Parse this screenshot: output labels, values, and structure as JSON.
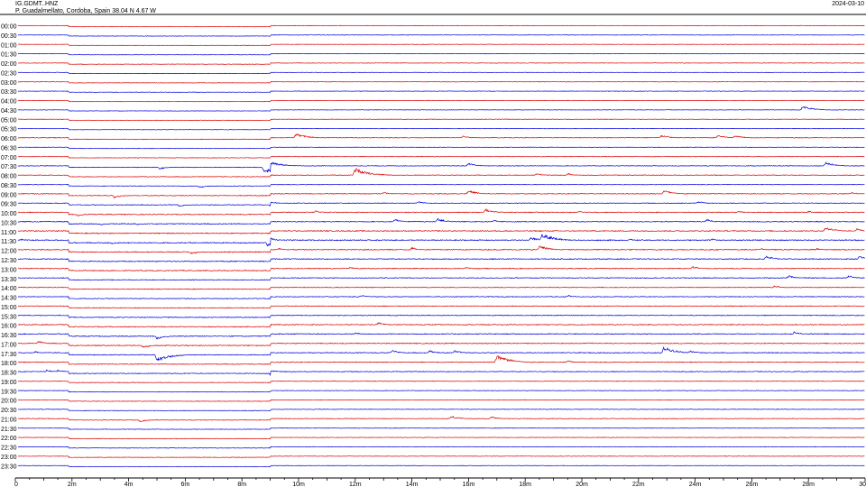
{
  "header": {
    "station": "IG.GDMT..HNZ",
    "location": "P. Guadalmellato, Cordoba, Spain  38.04 N 4.67 W",
    "date": "2024-03-10"
  },
  "chart_data": {
    "type": "line",
    "title": "IG.GDMT..HNZ",
    "subtitle": "P. Guadalmellato, Cordoba, Spain  38.04 N 4.67 W",
    "date": "2024-03-10",
    "xlabel": "",
    "ylabel": "",
    "xlim": [
      0,
      30
    ],
    "x_tick_values": [
      0,
      2,
      4,
      6,
      8,
      10,
      12,
      14,
      16,
      18,
      20,
      22,
      24,
      26,
      28,
      30
    ],
    "x_tick_labels": [
      "0",
      "2m",
      "4m",
      "6m",
      "8m",
      "10m",
      "12m",
      "14m",
      "16m",
      "18m",
      "20m",
      "22m",
      "24m",
      "26m",
      "28m",
      "30"
    ],
    "row_labels": [
      "00:00",
      "00:30",
      "01:00",
      "01:30",
      "02:00",
      "02:30",
      "03:00",
      "03:30",
      "04:00",
      "04:30",
      "05:00",
      "05:30",
      "06:00",
      "06:30",
      "07:00",
      "07:30",
      "08:00",
      "08:30",
      "09:00",
      "09:30",
      "10:00",
      "10:30",
      "11:00",
      "11:30",
      "12:00",
      "12:30",
      "13:00",
      "13:30",
      "14:00",
      "14:30",
      "15:00",
      "15:30",
      "16:00",
      "16:30",
      "17:00",
      "17:30",
      "18:00",
      "18:30",
      "19:00",
      "19:30",
      "20:00",
      "20:30",
      "21:00",
      "21:30",
      "22:00",
      "22:30",
      "23:00",
      "23:30"
    ],
    "trace_colors": [
      "#dd0000",
      "#0000dd"
    ],
    "background_noise": [
      0.8,
      0.8,
      0.8,
      0.8,
      0.9,
      0.8,
      0.8,
      0.8,
      0.8,
      0.8,
      0.8,
      0.8,
      1.2,
      0.9,
      0.9,
      1.1,
      1.2,
      1.1,
      1.4,
      1.3,
      1.6,
      1.7,
      1.8,
      2.0,
      1.8,
      1.8,
      1.6,
      1.5,
      1.3,
      1.4,
      1.4,
      1.5,
      1.6,
      1.7,
      1.6,
      1.6,
      1.5,
      1.4,
      1.0,
      1.0,
      1.0,
      1.0,
      1.1,
      0.9,
      0.9,
      0.9,
      0.9,
      0.8
    ],
    "events": [
      {
        "row": 9,
        "minute": 27.8,
        "amp": 5
      },
      {
        "row": 12,
        "minute": 9.9,
        "amp": 6
      },
      {
        "row": 12,
        "minute": 15.8,
        "amp": 3
      },
      {
        "row": 12,
        "minute": 22.8,
        "amp": 4
      },
      {
        "row": 12,
        "minute": 24.8,
        "amp": 4
      },
      {
        "row": 12,
        "minute": 25.4,
        "amp": 4
      },
      {
        "row": 15,
        "minute": 5.1,
        "amp": 3
      },
      {
        "row": 15,
        "minute": 8.8,
        "amp": 8
      },
      {
        "row": 15,
        "minute": 16.0,
        "amp": 4
      },
      {
        "row": 15,
        "minute": 28.6,
        "amp": 5
      },
      {
        "row": 16,
        "minute": 12.0,
        "amp": 9
      },
      {
        "row": 16,
        "minute": 18.4,
        "amp": 3
      },
      {
        "row": 16,
        "minute": 19.5,
        "amp": 3
      },
      {
        "row": 17,
        "minute": 6.5,
        "amp": 3
      },
      {
        "row": 18,
        "minute": 3.5,
        "amp": 4
      },
      {
        "row": 18,
        "minute": 13.0,
        "amp": 3
      },
      {
        "row": 18,
        "minute": 16.0,
        "amp": 5
      },
      {
        "row": 18,
        "minute": 22.9,
        "amp": 5
      },
      {
        "row": 18,
        "minute": 29.5,
        "amp": 3
      },
      {
        "row": 19,
        "minute": 5.8,
        "amp": 3
      },
      {
        "row": 19,
        "minute": 9.0,
        "amp": 3
      },
      {
        "row": 19,
        "minute": 14.2,
        "amp": 3
      },
      {
        "row": 19,
        "minute": 24.1,
        "amp": 3
      },
      {
        "row": 20,
        "minute": 2.2,
        "amp": 3
      },
      {
        "row": 20,
        "minute": 10.6,
        "amp": 3
      },
      {
        "row": 20,
        "minute": 16.6,
        "amp": 5
      },
      {
        "row": 20,
        "minute": 19.9,
        "amp": 3
      },
      {
        "row": 20,
        "minute": 25.5,
        "amp": 3
      },
      {
        "row": 20,
        "minute": 28.0,
        "amp": 3
      },
      {
        "row": 21,
        "minute": 3.0,
        "amp": 3
      },
      {
        "row": 21,
        "minute": 4.3,
        "amp": 3
      },
      {
        "row": 21,
        "minute": 13.4,
        "amp": 4
      },
      {
        "row": 21,
        "minute": 14.9,
        "amp": 5
      },
      {
        "row": 21,
        "minute": 16.9,
        "amp": 3
      },
      {
        "row": 21,
        "minute": 24.4,
        "amp": 4
      },
      {
        "row": 22,
        "minute": 28.6,
        "amp": 6
      },
      {
        "row": 22,
        "minute": 29.7,
        "amp": 4
      },
      {
        "row": 23,
        "minute": 0.2,
        "amp": 3
      },
      {
        "row": 23,
        "minute": 3.4,
        "amp": 3
      },
      {
        "row": 23,
        "minute": 8.9,
        "amp": 5
      },
      {
        "row": 23,
        "minute": 18.2,
        "amp": 5
      },
      {
        "row": 23,
        "minute": 18.6,
        "amp": 9
      },
      {
        "row": 23,
        "minute": 21.7,
        "amp": 3
      },
      {
        "row": 23,
        "minute": 24.6,
        "amp": 3
      },
      {
        "row": 24,
        "minute": 6.2,
        "amp": 4
      },
      {
        "row": 24,
        "minute": 9.3,
        "amp": 3
      },
      {
        "row": 24,
        "minute": 14.0,
        "amp": 4
      },
      {
        "row": 24,
        "minute": 18.5,
        "amp": 6
      },
      {
        "row": 24,
        "minute": 26.3,
        "amp": 3
      },
      {
        "row": 24,
        "minute": 28.3,
        "amp": 3
      },
      {
        "row": 25,
        "minute": 26.5,
        "amp": 5
      },
      {
        "row": 25,
        "minute": 29.8,
        "amp": 5
      },
      {
        "row": 26,
        "minute": 11.8,
        "amp": 3
      },
      {
        "row": 26,
        "minute": 15.9,
        "amp": 3
      },
      {
        "row": 26,
        "minute": 23.9,
        "amp": 4
      },
      {
        "row": 27,
        "minute": 27.3,
        "amp": 4
      },
      {
        "row": 27,
        "minute": 29.4,
        "amp": 4
      },
      {
        "row": 28,
        "minute": 26.8,
        "amp": 3
      },
      {
        "row": 29,
        "minute": 12.2,
        "amp": 3
      },
      {
        "row": 29,
        "minute": 19.5,
        "amp": 3
      },
      {
        "row": 32,
        "minute": 12.8,
        "amp": 4
      },
      {
        "row": 33,
        "minute": 5.0,
        "amp": 5
      },
      {
        "row": 33,
        "minute": 12.0,
        "amp": 3
      },
      {
        "row": 33,
        "minute": 27.5,
        "amp": 4
      },
      {
        "row": 34,
        "minute": 0.8,
        "amp": 4
      },
      {
        "row": 34,
        "minute": 4.5,
        "amp": 4
      },
      {
        "row": 34,
        "minute": 20.2,
        "amp": 3
      },
      {
        "row": 35,
        "minute": 0.7,
        "amp": 3
      },
      {
        "row": 35,
        "minute": 5.0,
        "amp": 9
      },
      {
        "row": 35,
        "minute": 13.3,
        "amp": 4
      },
      {
        "row": 35,
        "minute": 14.6,
        "amp": 4
      },
      {
        "row": 35,
        "minute": 15.5,
        "amp": 4
      },
      {
        "row": 35,
        "minute": 22.9,
        "amp": 8
      },
      {
        "row": 35,
        "minute": 23.8,
        "amp": 4
      },
      {
        "row": 36,
        "minute": 17.0,
        "amp": 9
      },
      {
        "row": 36,
        "minute": 19.5,
        "amp": 3
      },
      {
        "row": 37,
        "minute": 1.1,
        "amp": 3
      },
      {
        "row": 37,
        "minute": 1.5,
        "amp": 3
      },
      {
        "row": 37,
        "minute": 9.0,
        "amp": 3
      },
      {
        "row": 42,
        "minute": 4.4,
        "amp": 3
      },
      {
        "row": 42,
        "minute": 15.4,
        "amp": 4
      },
      {
        "row": 42,
        "minute": 16.8,
        "amp": 3
      }
    ]
  }
}
